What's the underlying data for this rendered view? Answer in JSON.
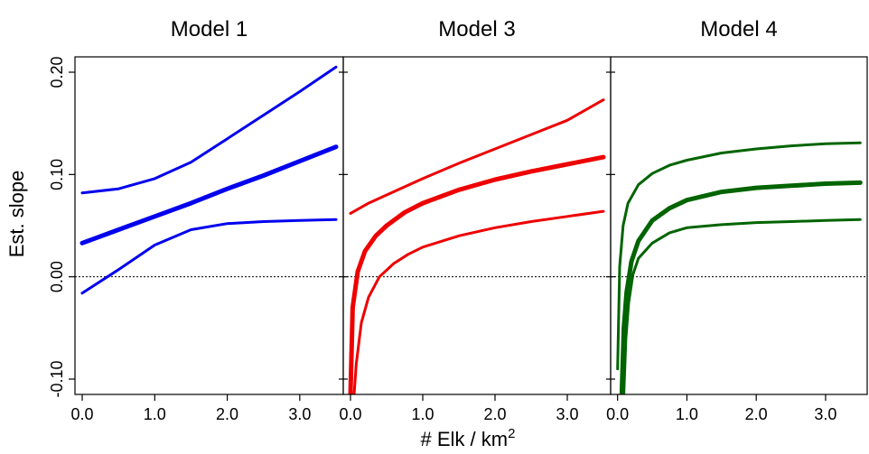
{
  "chart_data": {
    "type": "line",
    "xlabel_main": "# Elk / km",
    "xlabel_sup": "2",
    "ylabel": "Est. slope",
    "xlim": [
      -0.1,
      3.6
    ],
    "ylim": [
      -0.115,
      0.215
    ],
    "x_ticks": [
      0,
      1,
      2,
      3
    ],
    "x_tick_labels": [
      "0.0",
      "1.0",
      "2.0",
      "3.0"
    ],
    "y_ticks": [
      -0.1,
      0,
      0.1,
      0.2
    ],
    "y_tick_labels": [
      "-0.10",
      "0.00",
      "0.10",
      "0.20"
    ],
    "reference_line": 0,
    "panels": [
      {
        "title": "Model 1",
        "color": "#0000ee",
        "series": [
          {
            "role": "upper",
            "x": [
              0,
              0.5,
              1.0,
              1.5,
              2.0,
              2.5,
              3.0,
              3.5
            ],
            "y": [
              0.082,
              0.086,
              0.096,
              0.112,
              0.135,
              0.158,
              0.181,
              0.205
            ]
          },
          {
            "role": "estimate",
            "x": [
              0,
              0.5,
              1.0,
              1.5,
              2.0,
              2.5,
              3.0,
              3.5
            ],
            "y": [
              0.033,
              0.046,
              0.059,
              0.072,
              0.086,
              0.099,
              0.113,
              0.127
            ]
          },
          {
            "role": "lower",
            "x": [
              0,
              0.5,
              1.0,
              1.5,
              2.0,
              2.5,
              3.0,
              3.5
            ],
            "y": [
              -0.016,
              0.007,
              0.031,
              0.046,
              0.052,
              0.054,
              0.055,
              0.056
            ]
          }
        ]
      },
      {
        "title": "Model 3",
        "color": "#ee0000",
        "series": [
          {
            "role": "upper",
            "x": [
              0,
              0.25,
              0.5,
              1.0,
              1.5,
              2.0,
              2.5,
              3.0,
              3.5
            ],
            "y": [
              0.062,
              0.072,
              0.08,
              0.096,
              0.111,
              0.125,
              0.139,
              0.153,
              0.173
            ]
          },
          {
            "role": "estimate",
            "x": [
              0,
              0.03,
              0.1,
              0.2,
              0.35,
              0.5,
              0.75,
              1.0,
              1.5,
              2.0,
              2.5,
              3.0,
              3.5
            ],
            "y": [
              -0.115,
              -0.03,
              0.005,
              0.025,
              0.04,
              0.05,
              0.063,
              0.072,
              0.085,
              0.095,
              0.103,
              0.11,
              0.117
            ]
          },
          {
            "role": "lower",
            "x": [
              0.05,
              0.08,
              0.15,
              0.25,
              0.4,
              0.6,
              0.8,
              1.0,
              1.5,
              2.0,
              2.5,
              3.0,
              3.5
            ],
            "y": [
              -0.115,
              -0.085,
              -0.045,
              -0.02,
              0.0,
              0.013,
              0.022,
              0.029,
              0.04,
              0.048,
              0.054,
              0.059,
              0.064
            ]
          }
        ]
      },
      {
        "title": "Model 4",
        "color": "#006400",
        "series": [
          {
            "role": "upper",
            "x": [
              0,
              0.03,
              0.08,
              0.15,
              0.3,
              0.5,
              0.75,
              1.0,
              1.5,
              2.0,
              2.5,
              3.0,
              3.5
            ],
            "y": [
              -0.09,
              0.01,
              0.05,
              0.072,
              0.09,
              0.101,
              0.109,
              0.114,
              0.121,
              0.125,
              0.128,
              0.13,
              0.131
            ]
          },
          {
            "role": "estimate",
            "x": [
              0.06,
              0.09,
              0.13,
              0.2,
              0.3,
              0.5,
              0.75,
              1.0,
              1.5,
              2.0,
              2.5,
              3.0,
              3.5
            ],
            "y": [
              -0.115,
              -0.05,
              -0.015,
              0.015,
              0.035,
              0.055,
              0.067,
              0.075,
              0.083,
              0.087,
              0.089,
              0.091,
              0.092
            ]
          },
          {
            "role": "lower",
            "x": [
              0.09,
              0.12,
              0.16,
              0.22,
              0.3,
              0.5,
              0.75,
              1.0,
              1.5,
              2.0,
              2.5,
              3.0,
              3.5
            ],
            "y": [
              -0.115,
              -0.06,
              -0.025,
              0.002,
              0.018,
              0.033,
              0.043,
              0.048,
              0.051,
              0.053,
              0.054,
              0.055,
              0.056
            ]
          }
        ]
      }
    ]
  }
}
